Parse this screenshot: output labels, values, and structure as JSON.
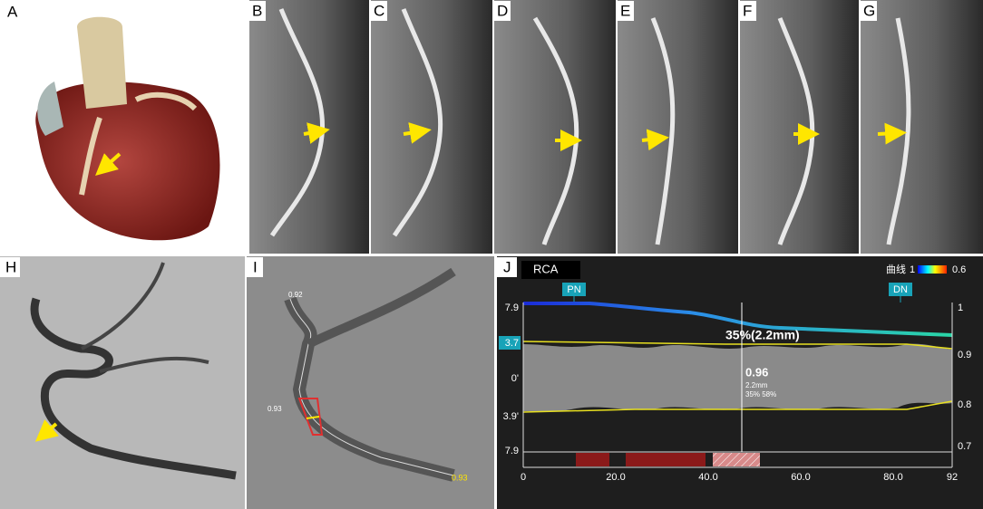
{
  "panels": [
    {
      "label": "A"
    },
    {
      "label": "B"
    },
    {
      "label": "C"
    },
    {
      "label": "D"
    },
    {
      "label": "E"
    },
    {
      "label": "F"
    },
    {
      "label": "G"
    },
    {
      "label": "H"
    },
    {
      "label": "I"
    },
    {
      "label": "J"
    }
  ],
  "panel_i": {
    "labels": [
      "0.92",
      "0.93",
      "0.93"
    ]
  },
  "panel_j": {
    "title": "RCA",
    "legend": {
      "label": "曲线",
      "min": "1",
      "max": "0.6"
    },
    "markers": [
      "PN",
      "DN"
    ],
    "left_axis": [
      "7.9",
      "3.7",
      "0'",
      "3.9'",
      "7.9"
    ],
    "right_axis": [
      "1",
      "0.9",
      "0.8",
      "0.7"
    ],
    "x_axis": [
      "0",
      "20.0",
      "40.0",
      "60.0",
      "80.0",
      "92"
    ],
    "annotation": "35%(2.2mm)",
    "readout": {
      "value": "0.96",
      "diameter": "2.2mm",
      "stenosis": "35% 58%"
    }
  }
}
